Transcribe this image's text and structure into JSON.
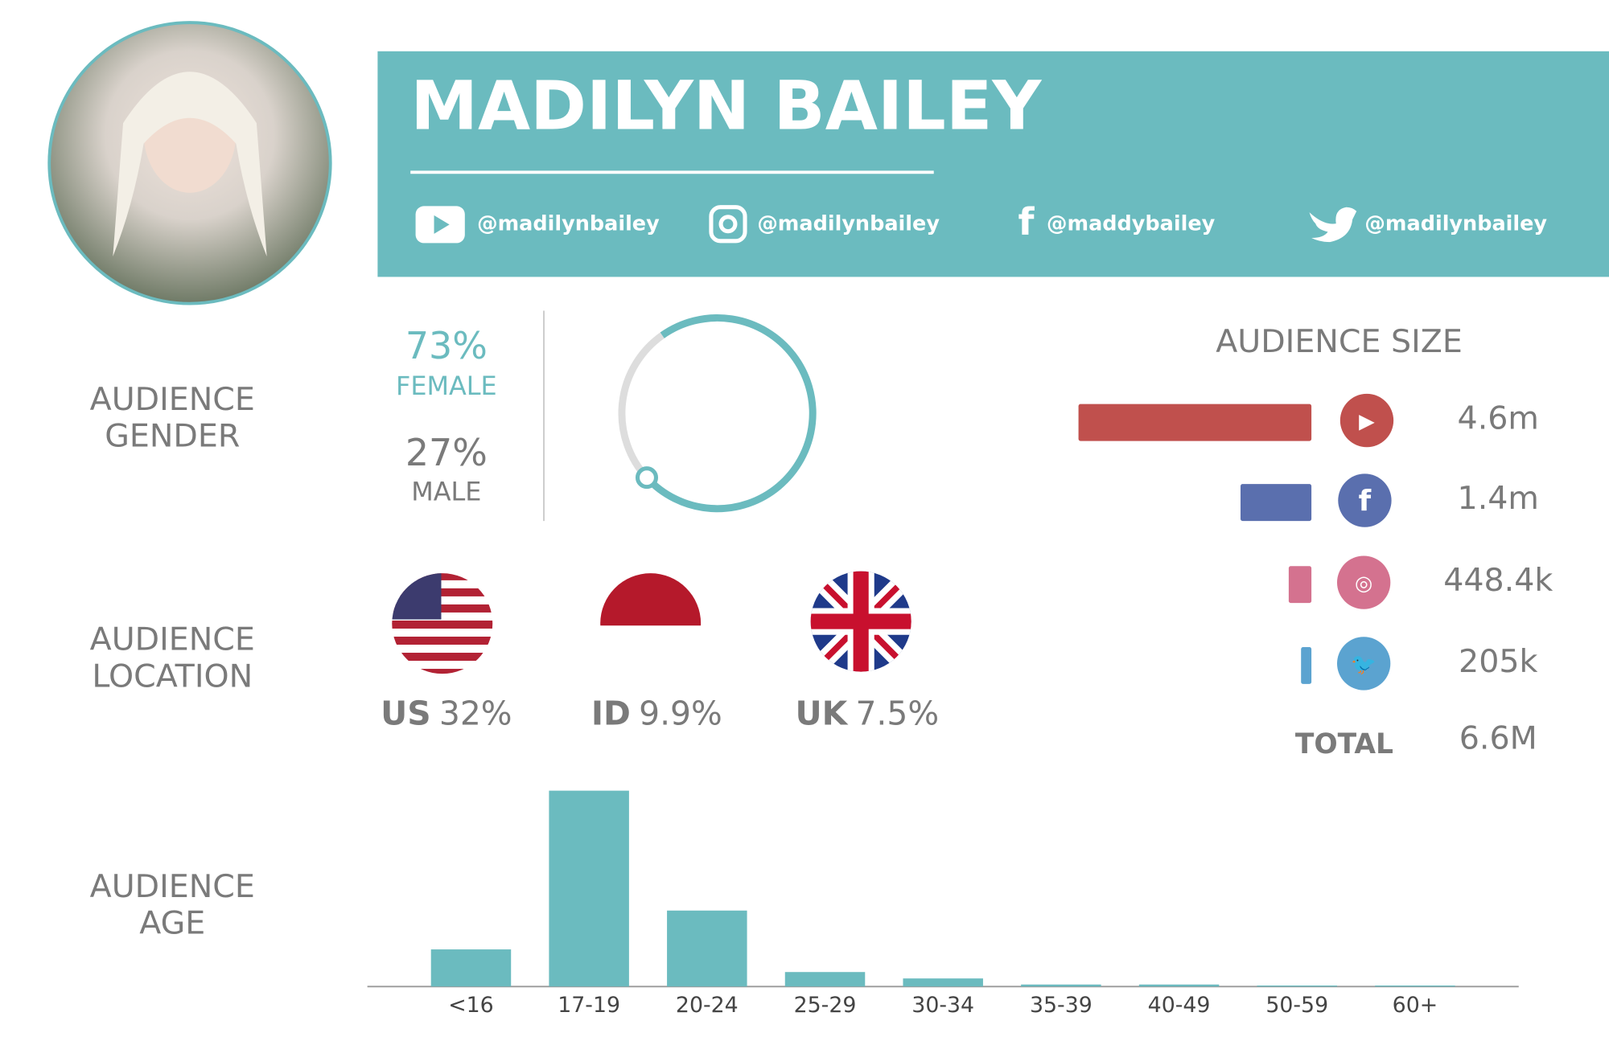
{
  "profile": {
    "name": "MADILYN BAILEY",
    "handles": [
      "@madilynbailey",
      "@madilynbailey",
      "@maddybailey",
      "@madilynbailey"
    ]
  },
  "chart_data": [
    {
      "type": "donut",
      "title": [
        "AUDIENCE",
        "GENDER"
      ],
      "categories": [
        "FEMALE",
        "MALE"
      ],
      "values": [
        73,
        27
      ],
      "value_labels": [
        "73%",
        "27%"
      ],
      "colors": [
        "#6bbbbf",
        "#dddddd"
      ]
    },
    {
      "type": "flags",
      "title": [
        "AUDIENCE",
        "LOCATION"
      ],
      "categories": [
        "US",
        "ID",
        "UK"
      ],
      "values": [
        32,
        9.9,
        7.5
      ],
      "value_labels": [
        "32%",
        "9.9%",
        "7.5%"
      ]
    },
    {
      "type": "hbar",
      "title": "AUDIENCE SIZE",
      "values": [
        4600000,
        1400000,
        448400,
        205000
      ],
      "value_labels": [
        "4.6m",
        "1.4m",
        "448.4k",
        "205k"
      ],
      "colors": [
        "#c0504d",
        "#5a6fae",
        "#d4728f",
        "#5ba3d0"
      ],
      "total_label": "TOTAL",
      "total": 6600000,
      "total_value_label": "6.6M"
    },
    {
      "type": "bar",
      "title": [
        "AUDIENCE",
        "AGE"
      ],
      "categories": [
        "<16",
        "17-19",
        "20-24",
        "25-29",
        "30-34",
        "35-39",
        "40-49",
        "50-59",
        "60+"
      ],
      "values": [
        11,
        58,
        22.5,
        4.3,
        2.4,
        0.6,
        0.6,
        0.3,
        0.3
      ],
      "color": "#6bbbbf"
    }
  ]
}
